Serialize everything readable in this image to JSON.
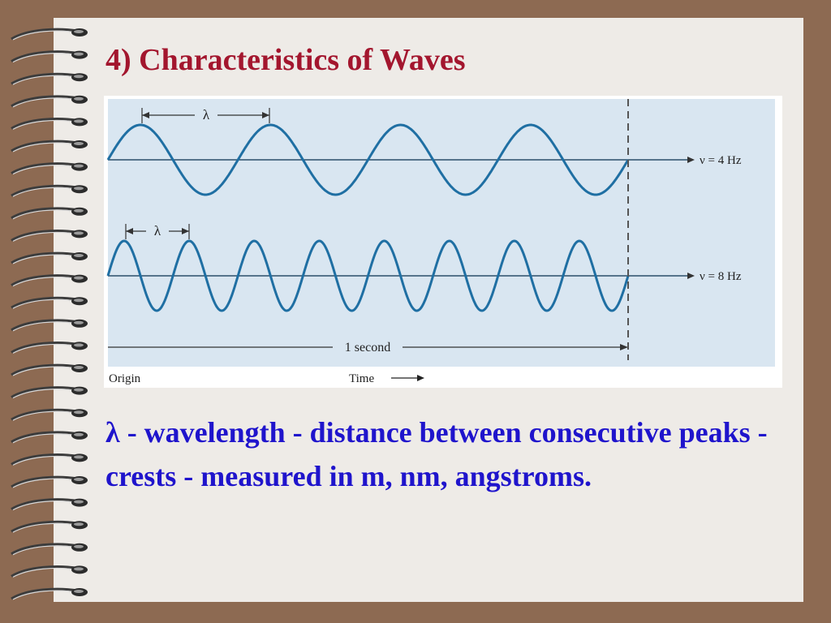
{
  "slide": {
    "title": "4) Characteristics of Waves",
    "bullet_symbol": "λ",
    "bullet_text": "- wavelength - distance between consecutive peaks - crests - measured in m, nm, angstroms."
  },
  "figure": {
    "wave_top": {
      "lambda_label": "λ",
      "freq_label": "ν = 4 Hz",
      "frequency_hz": 4
    },
    "wave_bottom": {
      "lambda_label": "λ",
      "freq_label": "ν = 8 Hz",
      "frequency_hz": 8
    },
    "duration_label": "1 second",
    "origin_label": "Origin",
    "time_label": "Time"
  },
  "colors": {
    "background": "#8d6a52",
    "page": "#eeebe7",
    "title": "#a3162e",
    "body_text": "#1f14cc",
    "figure_panel": "#d9e6f1",
    "wave": "#1f6fa3"
  }
}
